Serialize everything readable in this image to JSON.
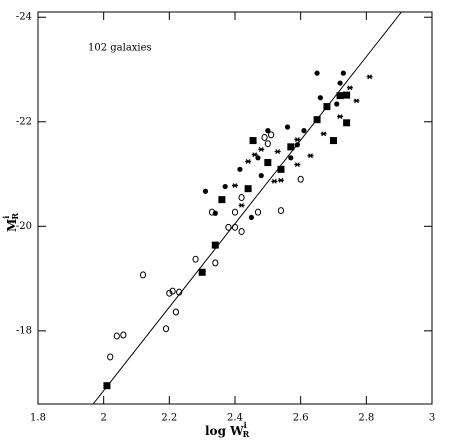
{
  "chart_data": {
    "type": "scatter",
    "annotation": "102 galaxies",
    "xlabel": {
      "main": "log W",
      "sub": "R",
      "sup": "i"
    },
    "ylabel": {
      "main": "M",
      "sub": "R",
      "sup": "i"
    },
    "xlim": [
      1.8,
      3.0
    ],
    "xticks": [
      1.8,
      2,
      2.2,
      2.4,
      2.6,
      2.8,
      3
    ],
    "ylim": [
      -24.1,
      -16.6
    ],
    "yticks": [
      -24,
      -22,
      -20,
      -18
    ],
    "inverted_y": true,
    "fit": {
      "color": "#000000",
      "x": [
        1.968,
        2.907
      ],
      "y": [
        -16.6,
        -24.1
      ]
    },
    "series": [
      {
        "marker": "square",
        "color": "#000000",
        "x": [
          2.01,
          2.3,
          2.34,
          2.36,
          2.44,
          2.455,
          2.57,
          2.5,
          2.54,
          2.65,
          2.68,
          2.72,
          2.74,
          2.7,
          2.74
        ],
        "y": [
          -16.95,
          -19.12,
          -19.64,
          -20.51,
          -20.72,
          -21.64,
          -21.52,
          -21.22,
          -21.09,
          -22.04,
          -22.29,
          -22.5,
          -21.98,
          -21.64,
          -22.51
        ]
      },
      {
        "marker": "dot",
        "color": "#000000",
        "x": [
          2.65,
          2.73,
          2.72,
          2.56,
          2.61,
          2.57,
          2.59,
          2.5,
          2.47,
          2.415,
          2.34,
          2.31,
          2.37,
          2.45,
          2.48,
          2.66,
          2.71
        ],
        "y": [
          -22.93,
          -22.93,
          -22.74,
          -21.9,
          -21.83,
          -21.31,
          -21.56,
          -21.83,
          -21.31,
          -21.09,
          -20.25,
          -20.67,
          -20.76,
          -20.17,
          -20.97,
          -22.46,
          -22.34
        ]
      },
      {
        "marker": "circle",
        "color": "#000000",
        "x": [
          2.02,
          2.04,
          2.06,
          2.12,
          2.19,
          2.2,
          2.21,
          2.23,
          2.22,
          2.28,
          2.34,
          2.33,
          2.4,
          2.4,
          2.42,
          2.38,
          2.47,
          2.54,
          2.49,
          2.51,
          2.5,
          2.6,
          2.42
        ],
        "y": [
          -17.5,
          -17.9,
          -17.92,
          -19.07,
          -18.04,
          -18.72,
          -18.76,
          -18.74,
          -18.36,
          -19.37,
          -19.3,
          -20.27,
          -20.27,
          -19.98,
          -19.9,
          -19.98,
          -20.27,
          -20.3,
          -21.7,
          -21.75,
          -21.58,
          -20.9,
          -20.55
        ]
      },
      {
        "marker": "star",
        "color": "#000000",
        "x": [
          2.81,
          2.75,
          2.77,
          2.72,
          2.67,
          2.59,
          2.53,
          2.46,
          2.48,
          2.44,
          2.42,
          2.52,
          2.54,
          2.4,
          2.59,
          2.63
        ],
        "y": [
          -22.86,
          -22.65,
          -22.4,
          -22.1,
          -21.77,
          -21.66,
          -21.43,
          -21.37,
          -21.47,
          -21.24,
          -20.4,
          -20.86,
          -20.88,
          -20.78,
          -21.18,
          -21.35
        ]
      }
    ]
  }
}
